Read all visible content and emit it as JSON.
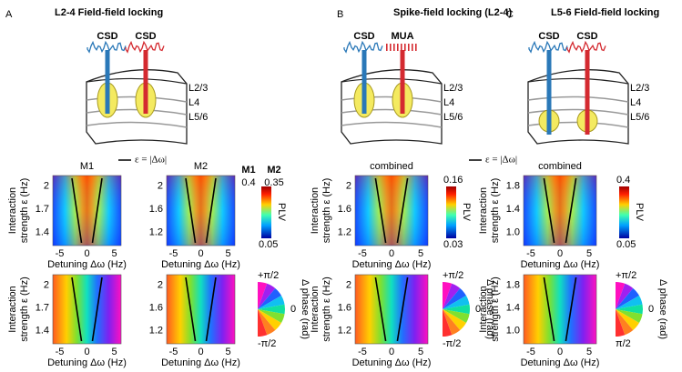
{
  "legend_label": "ε = |Δω|",
  "panels": [
    {
      "letter": "A",
      "title": "L2-4 Field-field locking",
      "probes": [
        "CSD",
        "CSD"
      ],
      "layers": [
        "L2/3",
        "L4",
        "L5/6"
      ],
      "maps": [
        {
          "title": "M1",
          "yticks": [
            "2",
            "1.7",
            "1.4"
          ],
          "xticks": [
            "-5",
            "0",
            "5"
          ]
        },
        {
          "title": "M2",
          "yticks": [
            "2",
            "1.6",
            "1.2"
          ],
          "xticks": [
            "-5",
            "0",
            "5"
          ]
        }
      ],
      "y_label": [
        "Interaction",
        "strength ε (Hz)"
      ],
      "x_label": "Detuning Δω (Hz)",
      "colorbar": {
        "header": [
          "M1",
          "M2"
        ],
        "top": [
          "0.4",
          "0.35"
        ],
        "bottom": "0.05",
        "label": "PLV"
      },
      "phase": {
        "top": "+π/2",
        "mid": "0",
        "bottom": "-π/2",
        "label": "Δ phase (rad)"
      }
    },
    {
      "letter": "B",
      "title": "Spike-field locking (L2-4)",
      "probes": [
        "CSD",
        "MUA"
      ],
      "layers": [
        "L2/3",
        "L4",
        "L5/6"
      ],
      "maps": [
        {
          "title": "combined",
          "yticks": [
            "2",
            "1.6",
            "1.2"
          ],
          "xticks": [
            "-5",
            "0",
            "5"
          ]
        }
      ],
      "y_label": [
        "Interaction",
        "strength ε (Hz)"
      ],
      "x_label": "Detuning Δω (Hz)",
      "colorbar": {
        "top": [
          "0.16"
        ],
        "bottom": "0.03",
        "label": "PLV"
      },
      "phase": {
        "top": "+π/2",
        "mid": "0",
        "bottom": "-π/2",
        "label": "Δ phase (rad)"
      }
    },
    {
      "letter": "C",
      "title": "L5-6 Field-field locking",
      "probes": [
        "CSD",
        "CSD"
      ],
      "layers": [
        "L2/3",
        "L4",
        "L5/6"
      ],
      "maps": [
        {
          "title": "combined",
          "yticks": [
            "1.8",
            "1.4",
            "1.0"
          ],
          "xticks": [
            "-5",
            "0",
            "5"
          ]
        }
      ],
      "y_label": [
        "Interaction",
        "strength ε (Hz)"
      ],
      "x_label": "Detuning Δω (Hz)",
      "colorbar": {
        "top": [
          "0.4"
        ],
        "bottom": "0.05",
        "label": "PLV"
      },
      "phase": {
        "top": "+π/2",
        "mid": "0",
        "bottom": "π/2",
        "label": "Δ phase (rad)"
      }
    }
  ]
}
